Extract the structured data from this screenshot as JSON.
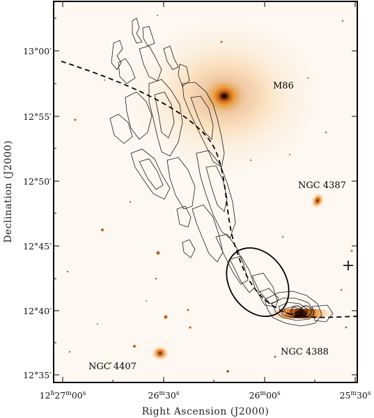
{
  "figure": {
    "xlabel": "Right Ascension (J2000)",
    "ylabel": "Declination (J2000)",
    "x_ticks": [
      {
        "h": "12",
        "m": "27",
        "s": "00",
        "full": true
      },
      {
        "m": "26",
        "s": "30"
      },
      {
        "m": "26",
        "s": "00"
      },
      {
        "m": "25",
        "s": "30"
      }
    ],
    "y_ticks": [
      {
        "deg": "13",
        "min": "00"
      },
      {
        "deg": "12",
        "min": "55"
      },
      {
        "deg": "12",
        "min": "50"
      },
      {
        "deg": "12",
        "min": "45"
      },
      {
        "deg": "12",
        "min": "40"
      },
      {
        "deg": "12",
        "min": "35"
      }
    ],
    "labels": {
      "m86": "M86",
      "ngc4387": "NGC 4387",
      "ngc4388": "NGC 4388",
      "ngc4407": "NGC 4407"
    },
    "colors": {
      "background": "#fdf8f2",
      "glow": "#f29a2e",
      "core": "#1a0a00",
      "contour": "#1a1a1a"
    }
  }
}
